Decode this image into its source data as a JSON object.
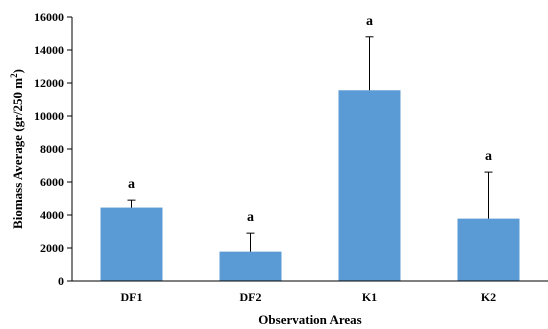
{
  "chart_data": {
    "type": "bar",
    "categories": [
      "DF1",
      "DF2",
      "K1",
      "K2"
    ],
    "values": [
      4450,
      1780,
      11560,
      3780
    ],
    "error_plus": [
      450,
      1120,
      3240,
      2820
    ],
    "significance": [
      "a",
      "a",
      "a",
      "a"
    ],
    "title": "",
    "xlabel": "Observation  Areas",
    "ylabel_main": "Biomass Average  (gr/250 m",
    "ylabel_sup": "2",
    "ylabel_end": ")",
    "ylim": [
      0,
      16000
    ],
    "yticks": [
      0,
      2000,
      4000,
      6000,
      8000,
      10000,
      12000,
      14000,
      16000
    ],
    "bar_color": "#5b9bd5",
    "grid": false,
    "legend": "none"
  }
}
